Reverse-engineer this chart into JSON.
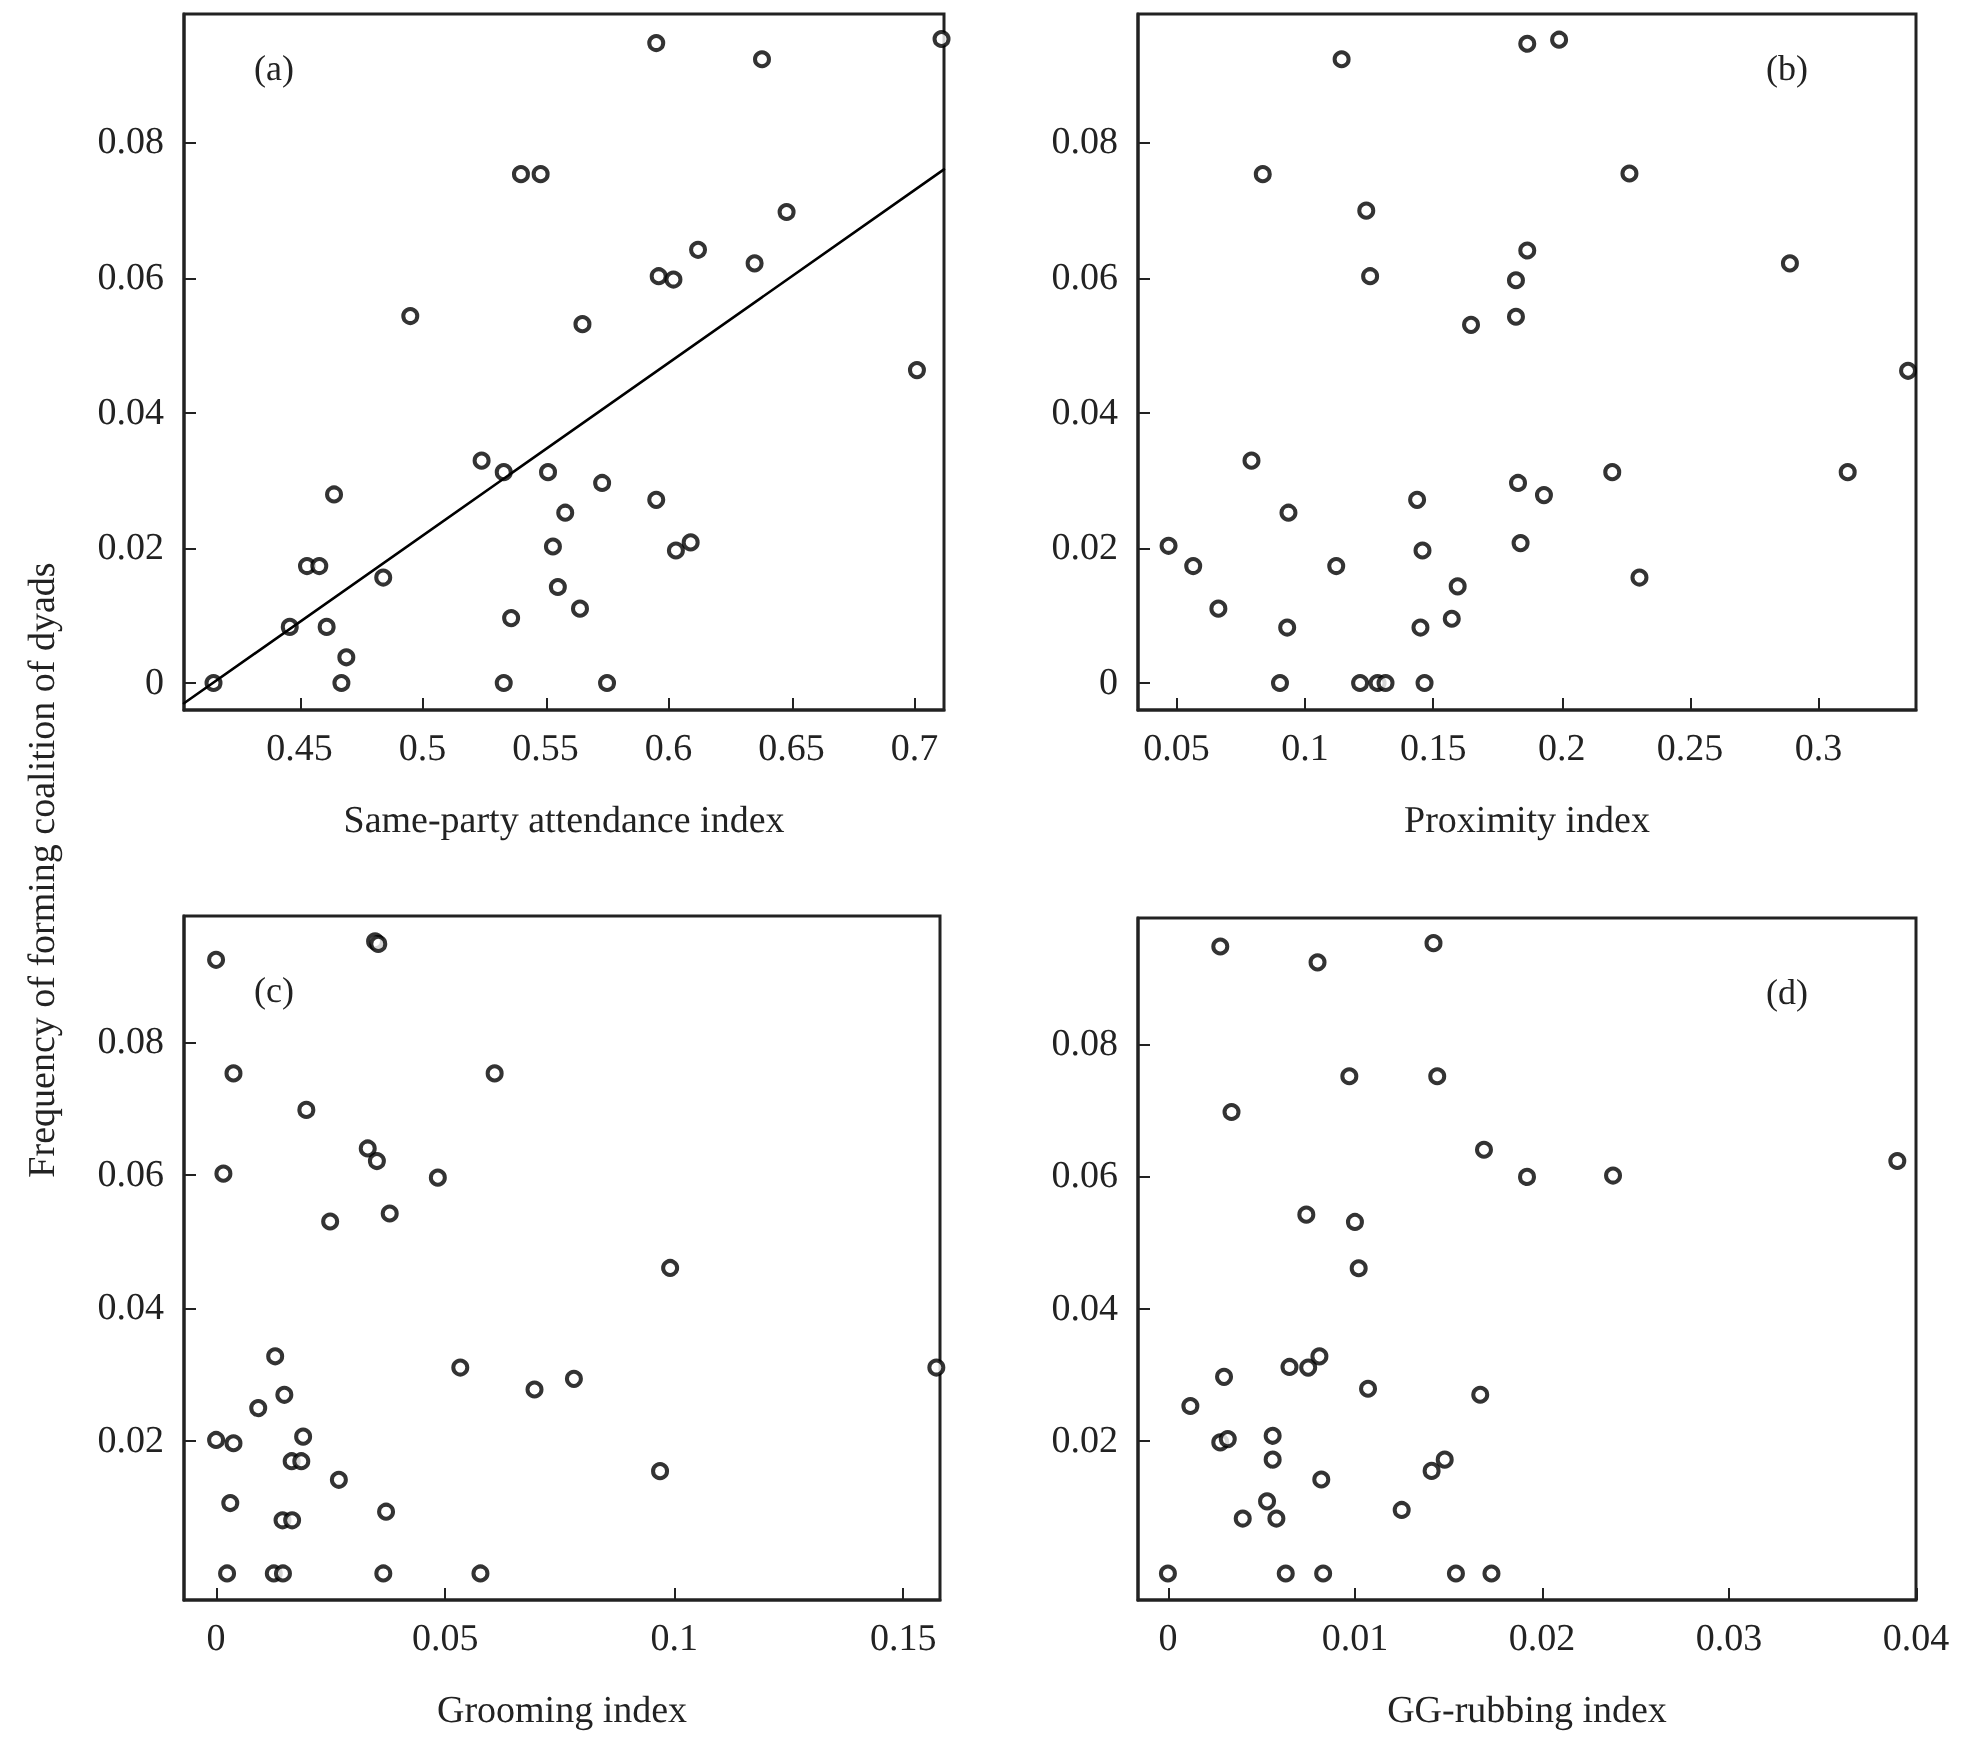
{
  "chart_data": [
    {
      "type": "scatter",
      "ylabel": "Frequency of forming coalition of dyads",
      "xlabel": "Same-party attendance index",
      "annotations": [
        "(a)"
      ],
      "marker": "circle",
      "xlim": [
        0.403,
        0.712
      ],
      "ylim": [
        -0.004,
        0.099
      ],
      "xticks": [
        0.45,
        0.5,
        0.55,
        0.6,
        0.65,
        0.7
      ],
      "yticks": [
        0,
        0.02,
        0.04,
        0.06,
        0.08
      ],
      "series": [
        {
          "color": "#000000",
          "x": [
            0.415,
            0.446,
            0.453,
            0.458,
            0.461,
            0.464,
            0.467,
            0.469,
            0.484,
            0.495,
            0.524,
            0.533,
            0.533,
            0.536,
            0.54,
            0.548,
            0.551,
            0.553,
            0.555,
            0.558,
            0.564,
            0.565,
            0.573,
            0.575,
            0.595,
            0.595,
            0.596,
            0.602,
            0.603,
            0.609,
            0.612,
            0.635,
            0.638,
            0.648,
            0.701,
            0.711
          ],
          "values": [
            0,
            0.0083,
            0.0173,
            0.0173,
            0.0083,
            0.0279,
            0,
            0.0038,
            0.0156,
            0.0543,
            0.0329,
            0.0312,
            0,
            0.0096,
            0.0753,
            0.0753,
            0.0312,
            0.0202,
            0.0142,
            0.0252,
            0.011,
            0.0531,
            0.0296,
            0,
            0.0947,
            0.0271,
            0.0602,
            0.0597,
            0.0196,
            0.0208,
            0.0641,
            0.0621,
            0.0923,
            0.0697,
            0.0463,
            0.0953
          ]
        },
        {
          "type": "line",
          "color": "#000000",
          "marker": "none",
          "line_style": "solid",
          "x": [
            0.403,
            0.712
          ],
          "values": [
            -0.003,
            0.076
          ]
        }
      ]
    },
    {
      "type": "scatter",
      "xlabel": "Proximity index",
      "annotations": [
        "(b)"
      ],
      "marker": "circle",
      "xlim": [
        0.035,
        0.338
      ],
      "ylim": [
        -0.004,
        0.099
      ],
      "xticks": [
        0.05,
        0.1,
        0.15,
        0.2,
        0.25,
        0.3
      ],
      "yticks": [
        0,
        0.02,
        0.04,
        0.06,
        0.08
      ],
      "series": [
        {
          "color": "#000000",
          "x": [
            0.0469,
            0.0565,
            0.0663,
            0.0792,
            0.0836,
            0.0903,
            0.0931,
            0.0936,
            0.1122,
            0.1143,
            0.1215,
            0.1239,
            0.1254,
            0.1283,
            0.1314,
            0.1437,
            0.145,
            0.1458,
            0.1466,
            0.1572,
            0.1595,
            0.1647,
            0.1822,
            0.1822,
            0.183,
            0.184,
            0.1866,
            0.1866,
            0.1931,
            0.199,
            0.2197,
            0.2264,
            0.2303,
            0.2889,
            0.3114,
            0.3349
          ],
          "values": [
            0.0203,
            0.0173,
            0.011,
            0.0329,
            0.0753,
            0,
            0.0082,
            0.0252,
            0.0173,
            0.0923,
            0,
            0.0699,
            0.0602,
            0,
            0,
            0.0271,
            0.0082,
            0.0196,
            0,
            0.0095,
            0.0143,
            0.053,
            0.0596,
            0.0542,
            0.0296,
            0.0207,
            0.0946,
            0.064,
            0.0278,
            0.0952,
            0.0312,
            0.0754,
            0.0156,
            0.0621,
            0.0312,
            0.0462
          ]
        }
      ]
    },
    {
      "type": "scatter",
      "xlabel": "Grooming index",
      "annotations": [
        "(c)"
      ],
      "marker": "circle",
      "xlim": [
        -0.007,
        0.158
      ],
      "ylim": [
        -0.004,
        0.099
      ],
      "xticks": [
        0,
        0.05,
        0.1,
        0.15
      ],
      "yticks": [
        0.02,
        0.04,
        0.06,
        0.08
      ],
      "series": [
        {
          "color": "#000000",
          "x": [
            0,
            0.0038,
            0.0016,
            0,
            0.0038,
            0.0031,
            0.0024,
            0.0092,
            0.0129,
            0.0149,
            0.0126,
            0.0146,
            0.0145,
            0.0166,
            0.0165,
            0.0186,
            0.019,
            0.0197,
            0.0249,
            0.0268,
            0.0331,
            0.0347,
            0.0354,
            0.0351,
            0.0379,
            0.0371,
            0.0365,
            0.0484,
            0.0533,
            0.0577,
            0.0608,
            0.0695,
            0.0781,
            0.0969,
            0.0991,
            0.1572
          ],
          "values": [
            0.0924,
            0.0753,
            0.0602,
            0.0201,
            0.0196,
            0.0106,
            0,
            0.0249,
            0.0327,
            0.0269,
            0,
            0,
            0.008,
            0.008,
            0.0169,
            0.0169,
            0.0206,
            0.0698,
            0.053,
            0.0141,
            0.064,
            0.0952,
            0.0948,
            0.0621,
            0.0542,
            0.0093,
            0,
            0.0596,
            0.031,
            0,
            0.0753,
            0.0277,
            0.0293,
            0.0154,
            0.046,
            0.031
          ]
        }
      ]
    },
    {
      "type": "scatter",
      "xlabel": "GG-rubbing index",
      "annotations": [
        "(d)"
      ],
      "marker": "circle",
      "xlim": [
        -0.0016,
        0.04
      ],
      "ylim": [
        -0.004,
        0.099
      ],
      "xticks": [
        0,
        0.01,
        0.02,
        0.03,
        0.04
      ],
      "yticks": [
        0.02,
        0.04,
        0.06,
        0.08
      ],
      "series": [
        {
          "color": "#000000",
          "x": [
            0,
            0.0012,
            0.0028,
            0.0028,
            0.003,
            0.0032,
            0.0034,
            0.004,
            0.0053,
            0.0056,
            0.0056,
            0.0058,
            0.0063,
            0.0065,
            0.0074,
            0.0075,
            0.008,
            0.0081,
            0.0082,
            0.0083,
            0.0097,
            0.01,
            0.0102,
            0.0107,
            0.0125,
            0.0141,
            0.0142,
            0.0144,
            0.0148,
            0.0154,
            0.0167,
            0.0169,
            0.0173,
            0.0192,
            0.0238,
            0.039
          ],
          "values": [
            0,
            0.0253,
            0.0947,
            0.0198,
            0.0297,
            0.0203,
            0.0697,
            0.0083,
            0.0109,
            0.0208,
            0.0172,
            0.0083,
            0,
            0.0312,
            0.0542,
            0.0311,
            0.0923,
            0.0328,
            0.0142,
            0,
            0.0751,
            0.0531,
            0.0461,
            0.0279,
            0.0096,
            0.0155,
            0.0952,
            0.0751,
            0.0172,
            0,
            0.027,
            0.064,
            0,
            0.0599,
            0.0601,
            0.0623
          ]
        }
      ]
    }
  ]
}
